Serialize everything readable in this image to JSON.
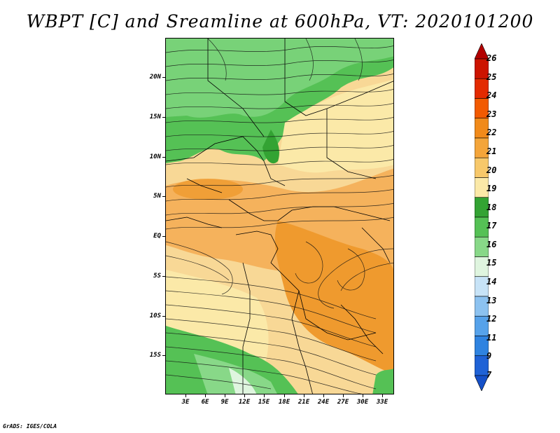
{
  "title": "WBPT [C] and Sreamline at 600hPa, VT: 2020101200",
  "credit": "GrADS: IGES/COLA",
  "map": {
    "lat_labels": [
      "20N",
      "15N",
      "10N",
      "5N",
      "EQ",
      "5S",
      "10S",
      "15S"
    ],
    "lon_labels": [
      "3E",
      "6E",
      "9E",
      "12E",
      "15E",
      "18E",
      "21E",
      "24E",
      "27E",
      "30E",
      "33E"
    ]
  },
  "colorbar": {
    "labels": [
      "26",
      "25",
      "24",
      "23",
      "22",
      "21",
      "20",
      "19",
      "18",
      "17",
      "16",
      "15",
      "14",
      "13",
      "12",
      "11",
      "9",
      "7"
    ],
    "colors": [
      "#b20000",
      "#cc1400",
      "#e32a00",
      "#f25a00",
      "#f18a1a",
      "#f4a53a",
      "#f7c86a",
      "#fbe9a8",
      "#33a333",
      "#55c155",
      "#88d888",
      "#dff5df",
      "#c7e3f7",
      "#8cc2f0",
      "#56a2ea",
      "#2f83e0",
      "#1f62d6",
      "#1550c8"
    ],
    "colors_note": "top arrow red, bottom arrow blue"
  }
}
